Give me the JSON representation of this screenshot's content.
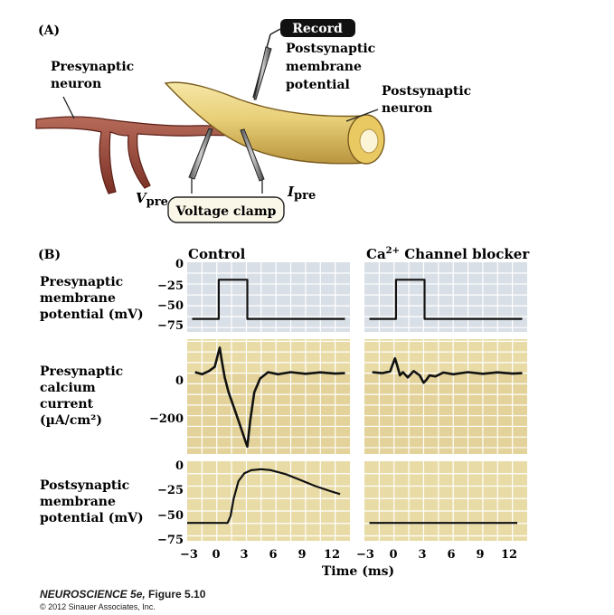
{
  "panel_a": {
    "label": "(A)",
    "record_label": "Record",
    "postsyn_potential_label": [
      "Postsynaptic",
      "membrane",
      "potential"
    ],
    "presyn_neuron_label": [
      "Presynaptic",
      "neuron"
    ],
    "postsyn_neuron_label": [
      "Postsynaptic",
      "neuron"
    ],
    "vpre_main": "V",
    "vpre_sub": "pre",
    "ipre_main": "I",
    "ipre_sub": "pre",
    "voltage_clamp_label": "Voltage clamp"
  },
  "panel_b": {
    "label": "(B)",
    "control_title": "Control",
    "blocker_title_prefix": "Ca",
    "blocker_title_sup": "2+",
    "blocker_title_suffix": " Channel blocker",
    "row1_label": [
      "Presynaptic",
      "membrane",
      "potential (mV)"
    ],
    "row2_label": [
      "Presynaptic",
      "calcium",
      "current",
      "(µA/cm²)"
    ],
    "row3_label": [
      "Postsynaptic",
      "membrane",
      "potential (mV)"
    ],
    "row1_ticks": [
      "0",
      "−25",
      "−50",
      "−75"
    ],
    "row2_ticks": [
      "0",
      "−200"
    ],
    "row3_ticks": [
      "0",
      "−25",
      "−50",
      "−75"
    ],
    "x_ticks": [
      "−3",
      "0",
      "3",
      "6",
      "9",
      "12"
    ],
    "x_label": "Time (ms)"
  },
  "chart_data": [
    {
      "type": "line",
      "title": "Control — Presynaptic membrane potential",
      "ylabel": "Presynaptic membrane potential (mV)",
      "xlabel": "Time (ms)",
      "xlim": [
        -3,
        13.5
      ],
      "ylim": [
        -80,
        0
      ],
      "x": [
        -2.5,
        0.2,
        0.2,
        3.1,
        3.1,
        13
      ],
      "y": [
        -65,
        -65,
        -20,
        -20,
        -65,
        -65
      ]
    },
    {
      "type": "line",
      "title": "Ca2+ Channel blocker — Presynaptic membrane potential",
      "ylabel": "Presynaptic membrane potential (mV)",
      "xlabel": "Time (ms)",
      "xlim": [
        -3,
        13.5
      ],
      "ylim": [
        -80,
        0
      ],
      "x": [
        -2.5,
        0.2,
        0.2,
        3.1,
        3.1,
        13
      ],
      "y": [
        -65,
        -65,
        -20,
        -20,
        -65,
        -65
      ]
    },
    {
      "type": "line",
      "title": "Control — Presynaptic calcium current",
      "ylabel": "Presynaptic calcium current (µA/cm²)",
      "xlabel": "Time (ms)",
      "xlim": [
        -3,
        13.5
      ],
      "ylim": [
        -380,
        160
      ],
      "x": [
        -2.2,
        -1.5,
        -0.8,
        -0.2,
        0.1,
        0.3,
        0.5,
        0.8,
        1.2,
        1.8,
        2.4,
        2.9,
        3.1,
        3.4,
        3.8,
        4.4,
        5.2,
        6.2,
        7.5,
        9,
        10.5,
        12,
        13
      ],
      "y": [
        5,
        -5,
        10,
        30,
        85,
        120,
        60,
        -20,
        -90,
        -170,
        -250,
        -320,
        -345,
        -220,
        -90,
        -25,
        5,
        -5,
        5,
        -3,
        4,
        -2,
        0
      ]
    },
    {
      "type": "line",
      "title": "Ca2+ Channel blocker — Presynaptic calcium current",
      "ylabel": "Presynaptic calcium current (µA/cm²)",
      "xlabel": "Time (ms)",
      "xlim": [
        -3,
        13.5
      ],
      "ylim": [
        -380,
        160
      ],
      "x": [
        -2.2,
        -1.2,
        -0.4,
        0.1,
        0.3,
        0.6,
        0.9,
        1.4,
        2,
        2.6,
        3.0,
        3.3,
        3.6,
        4.2,
        5,
        6,
        7.5,
        9,
        10.5,
        12,
        13
      ],
      "y": [
        5,
        0,
        8,
        70,
        40,
        -10,
        5,
        -20,
        10,
        -10,
        -45,
        -30,
        -10,
        -15,
        3,
        -5,
        5,
        -3,
        4,
        -2,
        0
      ]
    },
    {
      "type": "line",
      "title": "Control — Postsynaptic membrane potential",
      "ylabel": "Postsynaptic membrane potential (mV)",
      "xlabel": "Time (ms)",
      "xlim": [
        -3,
        13.5
      ],
      "ylim": [
        -80,
        0
      ],
      "x": [
        -3,
        1.1,
        1.4,
        1.7,
        2.2,
        2.8,
        3.5,
        4.5,
        5.5,
        7,
        8.5,
        10,
        11.5,
        12.5
      ],
      "y": [
        -62,
        -62,
        -55,
        -38,
        -20,
        -12,
        -9,
        -8,
        -9,
        -13,
        -19,
        -25,
        -30,
        -33
      ]
    },
    {
      "type": "line",
      "title": "Ca2+ Channel blocker — Postsynaptic membrane potential",
      "ylabel": "Postsynaptic membrane potential (mV)",
      "xlabel": "Time (ms)",
      "xlim": [
        -3,
        13.5
      ],
      "ylim": [
        -80,
        0
      ],
      "x": [
        -2.5,
        12.5
      ],
      "y": [
        -62,
        -62
      ]
    }
  ],
  "caption": {
    "book": "NEUROSCIENCE 5e,",
    "figure": "Figure 5.10",
    "copyright": "© 2012 Sinauer Associates, Inc."
  }
}
